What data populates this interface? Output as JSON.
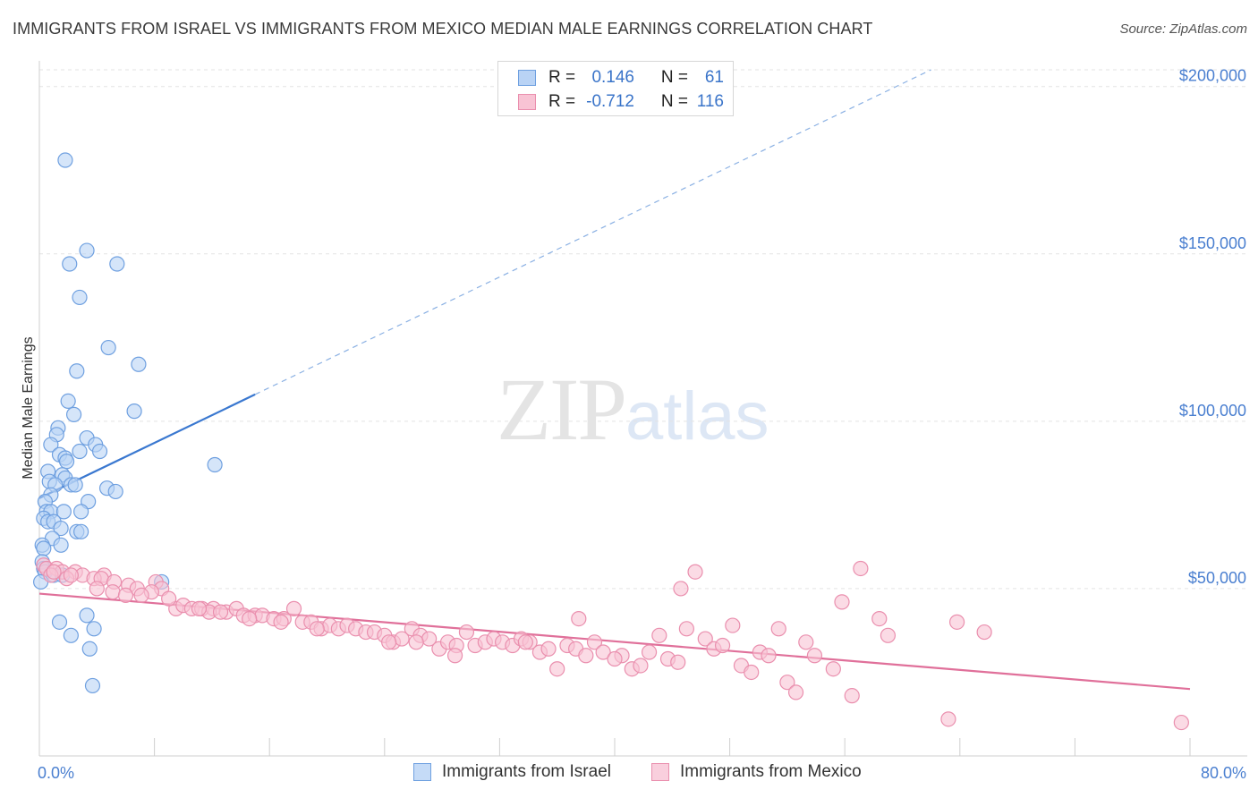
{
  "header": {
    "title": "IMMIGRANTS FROM ISRAEL VS IMMIGRANTS FROM MEXICO MEDIAN MALE EARNINGS CORRELATION CHART",
    "source": "Source: ZipAtlas.com"
  },
  "watermark": {
    "zip": "ZIP",
    "atlas": "atlas"
  },
  "legend": {
    "rows": [
      {
        "r_label": "R =",
        "r_value": "0.146",
        "n_label": "N =",
        "n_value": "61",
        "color": "#6fa0e0",
        "fill": "#b9d3f5"
      },
      {
        "r_label": "R =",
        "r_value": "-0.712",
        "n_label": "N =",
        "n_value": "116",
        "color": "#ea8fae",
        "fill": "#f8c3d4"
      }
    ]
  },
  "bottom_legend": {
    "items": [
      {
        "label": "Immigrants from Israel",
        "color": "#6fa0e0",
        "fill": "#c5dbf7"
      },
      {
        "label": "Immigrants from Mexico",
        "color": "#ea8fae",
        "fill": "#f9cfdd"
      }
    ]
  },
  "chart_data": {
    "type": "scatter",
    "ylabel": "Median Male Earnings",
    "xlim": [
      0,
      80
    ],
    "ylim": [
      0,
      205000
    ],
    "y_ticks": [
      {
        "value": 50000,
        "label": "$50,000"
      },
      {
        "value": 100000,
        "label": "$100,000"
      },
      {
        "value": 150000,
        "label": "$150,000"
      },
      {
        "value": 200000,
        "label": "$200,000"
      }
    ],
    "x_tick_labels": {
      "min": "0.0%",
      "max": "80.0%"
    },
    "grid": true,
    "series": [
      {
        "name": "Immigrants from Israel",
        "color": "#6fa0e0",
        "fill": "#b9d3f5",
        "trend": {
          "x0": 0,
          "y0": 77000,
          "x1": 15,
          "y1": 108000,
          "dash_to_x": 62,
          "dash_to_y": 205000
        },
        "points": [
          [
            1.8,
            178000
          ],
          [
            3.3,
            151000
          ],
          [
            2.1,
            147000
          ],
          [
            5.4,
            147000
          ],
          [
            2.8,
            137000
          ],
          [
            4.8,
            122000
          ],
          [
            2.6,
            115000
          ],
          [
            6.9,
            117000
          ],
          [
            2.0,
            106000
          ],
          [
            6.6,
            103000
          ],
          [
            2.4,
            102000
          ],
          [
            1.3,
            98000
          ],
          [
            1.2,
            96000
          ],
          [
            0.8,
            93000
          ],
          [
            3.3,
            95000
          ],
          [
            3.9,
            93000
          ],
          [
            1.4,
            90000
          ],
          [
            2.8,
            91000
          ],
          [
            4.2,
            91000
          ],
          [
            1.8,
            89000
          ],
          [
            1.9,
            88000
          ],
          [
            12.2,
            87000
          ],
          [
            0.6,
            85000
          ],
          [
            1.6,
            84000
          ],
          [
            1.8,
            83000
          ],
          [
            0.7,
            82000
          ],
          [
            1.1,
            81000
          ],
          [
            2.2,
            81000
          ],
          [
            2.5,
            81000
          ],
          [
            4.7,
            80000
          ],
          [
            5.3,
            79000
          ],
          [
            0.8,
            78000
          ],
          [
            0.4,
            76000
          ],
          [
            3.4,
            76000
          ],
          [
            0.5,
            73000
          ],
          [
            0.8,
            73000
          ],
          [
            1.7,
            73000
          ],
          [
            2.9,
            73000
          ],
          [
            0.3,
            71000
          ],
          [
            0.6,
            70000
          ],
          [
            1.0,
            70000
          ],
          [
            1.5,
            68000
          ],
          [
            2.6,
            67000
          ],
          [
            2.9,
            67000
          ],
          [
            0.9,
            65000
          ],
          [
            0.2,
            63000
          ],
          [
            1.5,
            63000
          ],
          [
            0.3,
            62000
          ],
          [
            0.2,
            58000
          ],
          [
            0.3,
            56000
          ],
          [
            0.4,
            55000
          ],
          [
            1.0,
            54000
          ],
          [
            1.6,
            54000
          ],
          [
            8.5,
            52000
          ],
          [
            0.1,
            52000
          ],
          [
            1.4,
            40000
          ],
          [
            3.3,
            42000
          ],
          [
            2.2,
            36000
          ],
          [
            3.8,
            38000
          ],
          [
            3.5,
            32000
          ],
          [
            3.7,
            21000
          ]
        ]
      },
      {
        "name": "Immigrants from Mexico",
        "color": "#ea8fae",
        "fill": "#f8c3d4",
        "trend": {
          "x0": 0,
          "y0": 48500,
          "x1": 80,
          "y1": 20000
        },
        "points": [
          [
            0.3,
            57000
          ],
          [
            0.5,
            56000
          ],
          [
            1.2,
            56000
          ],
          [
            1.6,
            55000
          ],
          [
            0.8,
            54000
          ],
          [
            2.5,
            55000
          ],
          [
            3.0,
            54000
          ],
          [
            4.5,
            54000
          ],
          [
            1.9,
            53000
          ],
          [
            3.8,
            53000
          ],
          [
            4.3,
            53000
          ],
          [
            5.2,
            52000
          ],
          [
            8.1,
            52000
          ],
          [
            6.2,
            51000
          ],
          [
            6.8,
            50000
          ],
          [
            8.5,
            50000
          ],
          [
            5.1,
            49000
          ],
          [
            7.8,
            49000
          ],
          [
            7.1,
            48000
          ],
          [
            9.5,
            44000
          ],
          [
            10.0,
            45000
          ],
          [
            10.6,
            44000
          ],
          [
            11.3,
            44000
          ],
          [
            12.1,
            44000
          ],
          [
            13.0,
            43000
          ],
          [
            13.7,
            44000
          ],
          [
            11.8,
            43000
          ],
          [
            12.6,
            43000
          ],
          [
            14.2,
            42000
          ],
          [
            15.0,
            42000
          ],
          [
            15.5,
            42000
          ],
          [
            16.3,
            41000
          ],
          [
            17.0,
            41000
          ],
          [
            17.7,
            44000
          ],
          [
            14.6,
            41000
          ],
          [
            18.3,
            40000
          ],
          [
            18.9,
            40000
          ],
          [
            19.6,
            38000
          ],
          [
            20.2,
            39000
          ],
          [
            20.8,
            38000
          ],
          [
            21.4,
            39000
          ],
          [
            22.0,
            38000
          ],
          [
            22.7,
            37000
          ],
          [
            23.3,
            37000
          ],
          [
            24.0,
            36000
          ],
          [
            24.6,
            34000
          ],
          [
            25.2,
            35000
          ],
          [
            25.9,
            38000
          ],
          [
            26.5,
            36000
          ],
          [
            27.1,
            35000
          ],
          [
            27.8,
            32000
          ],
          [
            28.4,
            34000
          ],
          [
            29.0,
            33000
          ],
          [
            29.7,
            37000
          ],
          [
            30.3,
            33000
          ],
          [
            31.0,
            34000
          ],
          [
            31.6,
            35000
          ],
          [
            32.2,
            34000
          ],
          [
            32.9,
            33000
          ],
          [
            33.5,
            35000
          ],
          [
            34.1,
            34000
          ],
          [
            34.8,
            31000
          ],
          [
            35.4,
            32000
          ],
          [
            36.0,
            26000
          ],
          [
            36.7,
            33000
          ],
          [
            37.3,
            32000
          ],
          [
            38.0,
            30000
          ],
          [
            38.6,
            34000
          ],
          [
            39.2,
            31000
          ],
          [
            40.5,
            30000
          ],
          [
            41.2,
            26000
          ],
          [
            41.8,
            27000
          ],
          [
            42.4,
            31000
          ],
          [
            43.1,
            36000
          ],
          [
            43.7,
            29000
          ],
          [
            44.4,
            28000
          ],
          [
            45.0,
            38000
          ],
          [
            45.6,
            55000
          ],
          [
            46.3,
            35000
          ],
          [
            46.9,
            32000
          ],
          [
            47.5,
            33000
          ],
          [
            48.2,
            39000
          ],
          [
            48.8,
            27000
          ],
          [
            49.5,
            25000
          ],
          [
            50.1,
            31000
          ],
          [
            50.7,
            30000
          ],
          [
            51.4,
            38000
          ],
          [
            52.0,
            22000
          ],
          [
            52.6,
            19000
          ],
          [
            53.3,
            34000
          ],
          [
            53.9,
            30000
          ],
          [
            55.2,
            26000
          ],
          [
            55.8,
            46000
          ],
          [
            56.5,
            18000
          ],
          [
            57.1,
            56000
          ],
          [
            58.4,
            41000
          ],
          [
            59.0,
            36000
          ],
          [
            63.2,
            11000
          ],
          [
            63.8,
            40000
          ],
          [
            65.7,
            37000
          ],
          [
            79.4,
            10000
          ],
          [
            37.5,
            41000
          ],
          [
            40.0,
            29000
          ],
          [
            44.6,
            50000
          ],
          [
            33.8,
            34000
          ],
          [
            28.9,
            30000
          ],
          [
            24.3,
            34000
          ],
          [
            26.2,
            34000
          ],
          [
            19.3,
            38000
          ],
          [
            16.8,
            40000
          ],
          [
            11.1,
            44000
          ],
          [
            9.0,
            47000
          ],
          [
            6.0,
            48000
          ],
          [
            4.0,
            50000
          ],
          [
            2.2,
            54000
          ],
          [
            1.0,
            55000
          ]
        ]
      }
    ]
  }
}
